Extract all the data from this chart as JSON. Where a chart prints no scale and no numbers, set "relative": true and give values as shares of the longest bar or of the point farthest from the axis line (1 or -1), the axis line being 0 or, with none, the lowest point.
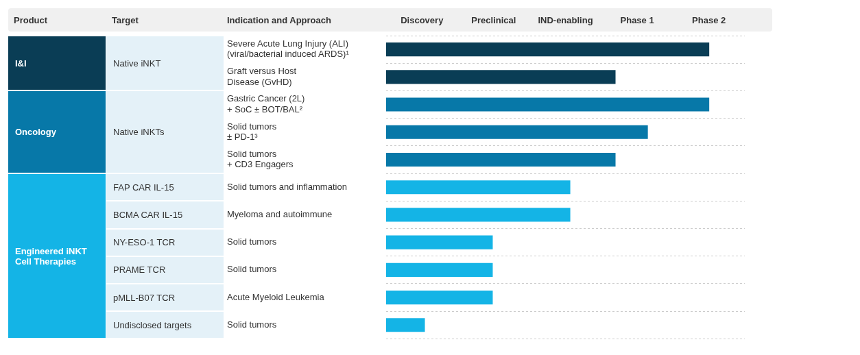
{
  "chart_data": {
    "type": "bar",
    "orientation": "horizontal",
    "relative": true,
    "ylabel": "Indication and Approach",
    "categories": [
      "Severe Acute Lung Injury (ALI)\n(viral/bacterial induced ARDS)¹",
      "Graft versus Host\nDisease (GvHD)",
      "Gastric Cancer (2L)\n+ SoC ± BOT/BAL²",
      "Solid tumors\n± PD-1³",
      "Solid tumors\n+ CD3 Engagers",
      "Solid tumors and inflammation",
      "Myeloma and autoimmune",
      "Solid tumors",
      "Solid tumors",
      "Acute Myeloid Leukemia",
      "Solid tumors"
    ],
    "values": [
      1,
      0.71,
      1,
      0.81,
      0.71,
      0.57,
      0.57,
      0.33,
      0.33,
      0.33,
      0.12
    ],
    "colors": [
      "#0a3d55",
      "#0a3d55",
      "#0778a8",
      "#0778a8",
      "#0778a8",
      "#14b4e6",
      "#14b4e6",
      "#14b4e6",
      "#14b4e6",
      "#14b4e6",
      "#14b4e6"
    ],
    "grid": "y",
    "line_style": "dashed",
    "legend": false,
    "annotations": [
      "Product",
      "Target",
      "I&I",
      "Oncology",
      "Engineered iNKT\nCell Therapies",
      "Native iNKT",
      "Native iNKTs",
      "FAP CAR IL-15",
      "BCMA CAR IL-15",
      "NY-ESO-1 TCR",
      "PRAME TCR",
      "pMLL-B07 TCR",
      "Undisclosed targets",
      "Discovery",
      "Preclinical",
      "IND-enabling",
      "Phase 1",
      "Phase 2"
    ]
  }
}
